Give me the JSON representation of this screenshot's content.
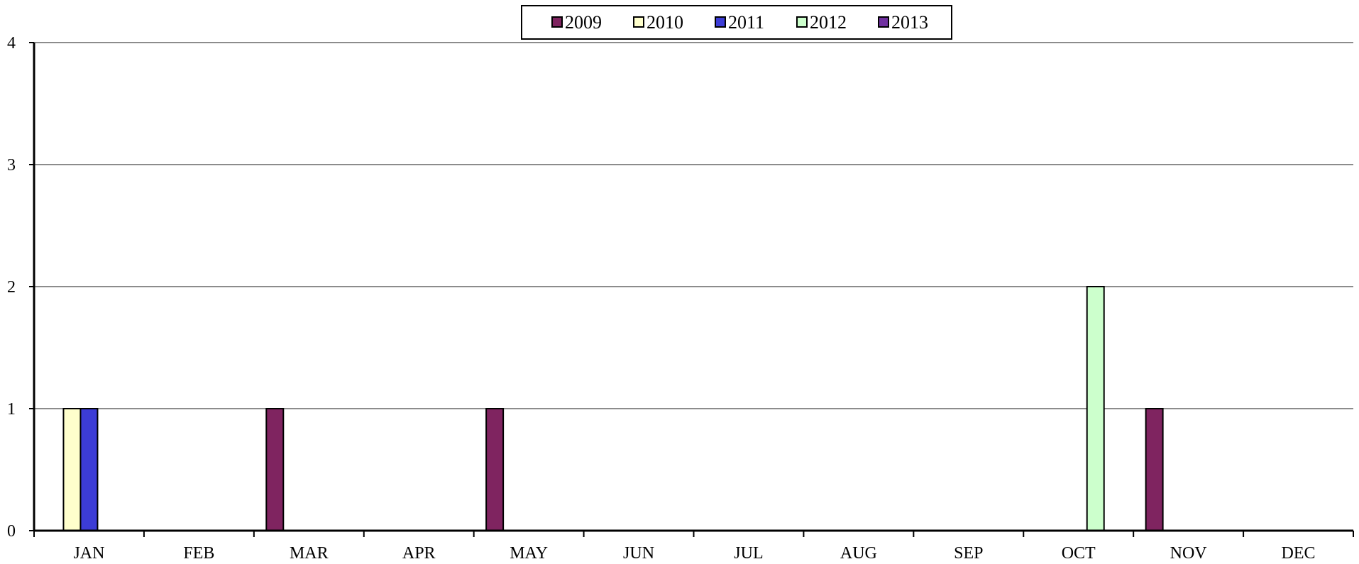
{
  "chart_data": {
    "type": "bar",
    "title": "",
    "xlabel": "",
    "ylabel": "",
    "categories": [
      "JAN",
      "FEB",
      "MAR",
      "APR",
      "MAY",
      "JUN",
      "JUL",
      "AUG",
      "SEP",
      "OCT",
      "NOV",
      "DEC"
    ],
    "ylim": [
      0,
      4
    ],
    "yticks": [
      "0",
      "1",
      "2",
      "3",
      "4"
    ],
    "grid": true,
    "legend_position": "top-center",
    "series": [
      {
        "name": "2009",
        "color": "#7F2460",
        "values": [
          0,
          0,
          1,
          0,
          1,
          0,
          0,
          0,
          0,
          0,
          1,
          0
        ]
      },
      {
        "name": "2010",
        "color": "#FFFFCC",
        "values": [
          1,
          0,
          0,
          0,
          0,
          0,
          0,
          0,
          0,
          0,
          0,
          0
        ]
      },
      {
        "name": "2011",
        "color": "#3C3CD6",
        "values": [
          1,
          0,
          0,
          0,
          0,
          0,
          0,
          0,
          0,
          0,
          0,
          0
        ]
      },
      {
        "name": "2012",
        "color": "#CCFFCC",
        "values": [
          0,
          0,
          0,
          0,
          0,
          0,
          0,
          0,
          0,
          2,
          0,
          0
        ]
      },
      {
        "name": "2013",
        "color": "#7030A0",
        "values": [
          0,
          0,
          0,
          0,
          0,
          0,
          0,
          0,
          0,
          0,
          0,
          0
        ]
      }
    ]
  }
}
